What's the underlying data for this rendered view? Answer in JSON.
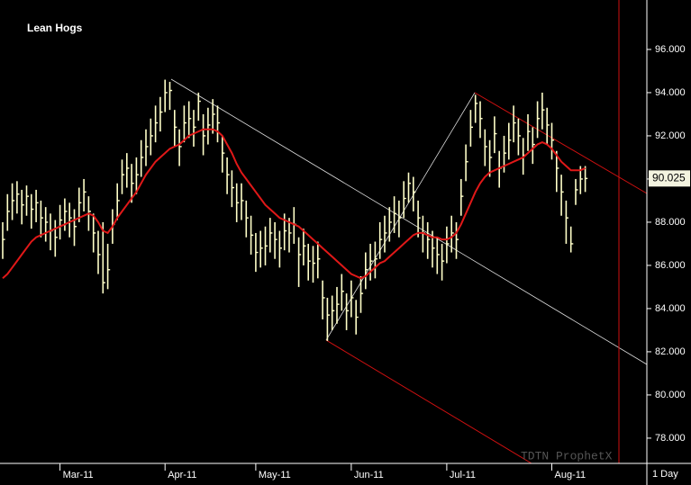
{
  "chart_data": {
    "type": "ohlc",
    "title": "Lean Hogs",
    "interval": "1 Day",
    "watermark": "TDTN ProphetX",
    "categories": [
      null,
      null,
      null,
      null,
      null,
      null,
      null,
      null,
      null,
      null,
      null,
      null,
      "Mar-11",
      null,
      null,
      null,
      null,
      null,
      null,
      null,
      null,
      null,
      null,
      null,
      null,
      null,
      null,
      null,
      null,
      null,
      null,
      null,
      null,
      null,
      "Apr-11",
      null,
      null,
      null,
      null,
      null,
      null,
      null,
      null,
      null,
      null,
      null,
      null,
      null,
      null,
      null,
      null,
      null,
      null,
      "May-11",
      null,
      null,
      null,
      null,
      null,
      null,
      null,
      null,
      null,
      null,
      null,
      null,
      null,
      null,
      null,
      null,
      null,
      null,
      null,
      "Jun-11",
      null,
      null,
      null,
      null,
      null,
      null,
      null,
      null,
      null,
      null,
      null,
      null,
      null,
      null,
      null,
      null,
      null,
      null,
      null,
      "Jul-11",
      null,
      null,
      null,
      null,
      null,
      null,
      null,
      null,
      null,
      null,
      null,
      null,
      null,
      null,
      null,
      null,
      null,
      null,
      null,
      null,
      null,
      "Aug-11",
      null,
      null,
      null,
      null,
      null,
      null,
      null
    ],
    "high": [
      88.0,
      89.3,
      89.8,
      89.9,
      89.5,
      89.7,
      89.3,
      89.5,
      89.0,
      88.7,
      88.4,
      88.1,
      88.8,
      89.1,
      88.9,
      88.6,
      89.6,
      90.0,
      89.2,
      88.4,
      87.6,
      88.0,
      87.0,
      88.6,
      89.8,
      90.9,
      91.2,
      90.7,
      91.0,
      91.8,
      92.3,
      92.8,
      93.4,
      93.8,
      94.6,
      94.5,
      93.2,
      92.3,
      93.4,
      93.6,
      93.2,
      94.0,
      93.0,
      93.3,
      93.7,
      93.4,
      92.0,
      91.0,
      90.4,
      89.8,
      89.8,
      89.0,
      88.3,
      87.5,
      87.6,
      87.8,
      88.2,
      88.0,
      87.6,
      88.4,
      88.2,
      88.7,
      87.3,
      87.7,
      87.0,
      86.9,
      87.1,
      85.3,
      84.5,
      84.6,
      85.0,
      85.6,
      84.7,
      85.3,
      84.4,
      85.5,
      86.6,
      87.0,
      87.1,
      88.0,
      88.3,
      88.7,
      89.2,
      89.0,
      89.9,
      90.3,
      90.1,
      89.0,
      88.3,
      88.0,
      87.6,
      87.3,
      87.0,
      87.8,
      88.3,
      88.0,
      90.0,
      91.6,
      93.2,
      93.9,
      93.6,
      92.3,
      91.8,
      92.9,
      91.3,
      92.0,
      92.6,
      93.4,
      92.8,
      91.9,
      93.0,
      92.4,
      93.6,
      94.0,
      93.3,
      92.6,
      91.3,
      90.2,
      89.0,
      87.8,
      90.0,
      90.6,
      90.6
    ],
    "low": [
      86.3,
      87.6,
      88.1,
      88.4,
      87.9,
      88.3,
      87.7,
      88.0,
      87.3,
      87.1,
      86.7,
      86.4,
      87.2,
      87.6,
      87.3,
      86.9,
      88.0,
      88.5,
      87.6,
      86.6,
      85.6,
      84.7,
      84.9,
      87.0,
      88.1,
      89.3,
      89.6,
      88.9,
      89.3,
      90.1,
      90.6,
      91.1,
      91.7,
      92.2,
      93.1,
      93.2,
      91.5,
      90.6,
      91.7,
      91.9,
      91.5,
      92.7,
      91.1,
      91.6,
      92.1,
      91.7,
      90.3,
      89.3,
      88.7,
      88.0,
      88.1,
      87.3,
      86.5,
      85.7,
      85.9,
      86.0,
      86.6,
      86.3,
      85.9,
      86.7,
      86.6,
      87.0,
      85.0,
      86.0,
      85.3,
      85.2,
      85.4,
      83.5,
      82.5,
      83.0,
      83.3,
      83.9,
      83.0,
      83.6,
      82.8,
      83.8,
      84.9,
      85.3,
      85.4,
      86.3,
      86.6,
      87.1,
      87.5,
      87.3,
      88.2,
      88.9,
      88.5,
      87.3,
      86.6,
      86.3,
      85.9,
      85.6,
      85.3,
      86.1,
      86.6,
      86.3,
      88.3,
      89.9,
      91.5,
      92.6,
      91.9,
      90.6,
      90.1,
      91.2,
      89.6,
      90.3,
      90.9,
      91.7,
      91.1,
      90.2,
      91.3,
      90.7,
      91.9,
      92.3,
      91.6,
      90.9,
      89.4,
      88.3,
      87.0,
      86.6,
      88.8,
      89.3,
      89.4
    ],
    "close": [
      87.2,
      88.5,
      89.0,
      89.3,
      88.8,
      89.2,
      88.6,
      88.9,
      88.2,
      88.0,
      87.6,
      87.3,
      88.1,
      88.5,
      88.2,
      87.8,
      88.9,
      89.4,
      88.5,
      87.5,
      86.5,
      85.2,
      85.8,
      87.9,
      89.0,
      90.2,
      90.5,
      89.8,
      90.2,
      91.0,
      91.5,
      92.0,
      92.6,
      93.1,
      94.0,
      94.1,
      92.4,
      91.5,
      92.6,
      92.8,
      92.4,
      93.6,
      92.0,
      92.5,
      93.0,
      92.6,
      91.2,
      90.2,
      89.6,
      88.9,
      89.0,
      88.2,
      87.4,
      86.6,
      86.8,
      86.9,
      87.5,
      87.2,
      86.8,
      87.6,
      87.5,
      87.9,
      86.5,
      86.9,
      86.2,
      86.1,
      86.3,
      84.5,
      83.7,
      83.9,
      84.2,
      84.8,
      83.9,
      84.5,
      83.6,
      84.7,
      85.8,
      86.2,
      86.3,
      87.2,
      87.5,
      88.0,
      88.4,
      88.2,
      89.1,
      89.8,
      89.4,
      88.2,
      87.5,
      87.2,
      86.8,
      86.5,
      86.2,
      87.0,
      87.5,
      87.2,
      89.2,
      90.8,
      92.4,
      93.5,
      92.8,
      91.5,
      91.0,
      92.1,
      90.5,
      91.2,
      91.8,
      92.6,
      92.0,
      91.1,
      92.2,
      91.6,
      92.8,
      93.2,
      92.5,
      91.8,
      90.5,
      89.4,
      88.2,
      87.0,
      89.5,
      90.0,
      90.025
    ],
    "moving_average": [
      85.4,
      85.6,
      85.9,
      86.2,
      86.5,
      86.8,
      87.1,
      87.3,
      87.4,
      87.5,
      87.6,
      87.7,
      87.8,
      87.9,
      88.0,
      88.1,
      88.2,
      88.3,
      88.4,
      88.3,
      88.0,
      87.6,
      87.5,
      87.8,
      88.2,
      88.5,
      88.8,
      89.1,
      89.4,
      89.8,
      90.2,
      90.5,
      90.8,
      91.0,
      91.2,
      91.4,
      91.5,
      91.6,
      91.8,
      92.0,
      92.1,
      92.2,
      92.3,
      92.3,
      92.3,
      92.2,
      92.0,
      91.6,
      91.2,
      90.7,
      90.3,
      90.0,
      89.7,
      89.4,
      89.1,
      88.8,
      88.6,
      88.4,
      88.2,
      88.1,
      88.0,
      87.9,
      87.8,
      87.6,
      87.4,
      87.2,
      87.0,
      86.8,
      86.6,
      86.4,
      86.2,
      86.0,
      85.8,
      85.6,
      85.5,
      85.4,
      85.5,
      85.7,
      85.9,
      86.1,
      86.2,
      86.4,
      86.6,
      86.8,
      87.0,
      87.2,
      87.4,
      87.5,
      87.5,
      87.4,
      87.3,
      87.3,
      87.2,
      87.2,
      87.3,
      87.5,
      87.9,
      88.4,
      88.9,
      89.4,
      89.8,
      90.1,
      90.3,
      90.4,
      90.5,
      90.6,
      90.7,
      90.8,
      90.9,
      91.0,
      91.2,
      91.4,
      91.6,
      91.7,
      91.6,
      91.4,
      91.1,
      90.8,
      90.6,
      90.4,
      90.4,
      90.4,
      90.5
    ],
    "bar_color": "#ffffc8",
    "ma_color": "#e01818",
    "last_price": {
      "value": 90.025,
      "label": "90.025"
    },
    "ylim": [
      76.83,
      98.29
    ],
    "yticks": [
      {
        "value": 78,
        "label": "78.000"
      },
      {
        "value": 80,
        "label": "80.000"
      },
      {
        "value": 82,
        "label": "82.000"
      },
      {
        "value": 84,
        "label": "84.000"
      },
      {
        "value": 86,
        "label": "86.000"
      },
      {
        "value": 88,
        "label": "88.000"
      },
      {
        "value": 90,
        "label": "90.000"
      },
      {
        "value": 92,
        "label": "92.000"
      },
      {
        "value": 94,
        "label": "94.000"
      },
      {
        "value": 96,
        "label": "96.000"
      }
    ]
  }
}
